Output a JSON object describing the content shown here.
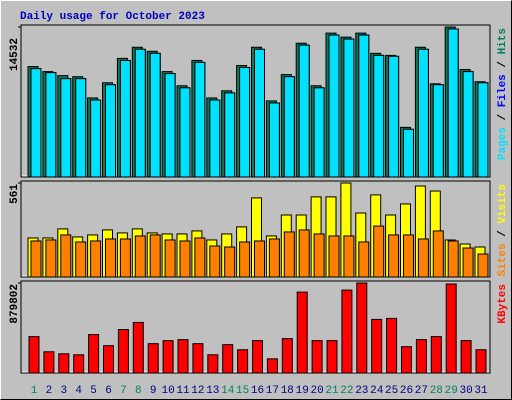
{
  "chart_data": [
    {
      "type": "bar",
      "title": "Daily usage for October 2023",
      "legend_separator": " / ",
      "ylim": [
        0,
        14532
      ],
      "yticks": [
        14532
      ],
      "series": [
        {
          "name": "Hits",
          "color": "#00805c",
          "values": [
            10700,
            10210,
            9820,
            9720,
            7660,
            9130,
            11490,
            12570,
            12180,
            10210,
            8840,
            11290,
            7660,
            8350,
            10800,
            12570,
            7370,
            9920,
            12960,
            8840,
            13940,
            13550,
            13940,
            11980,
            11780,
            4810,
            12570,
            9030,
            14532,
            10410,
            9230
          ]
        },
        {
          "name": "Files",
          "color": "#0000ff",
          "values": [
            10500,
            10110,
            9530,
            9530,
            7460,
            8940,
            11290,
            12370,
            11980,
            10020,
            8640,
            11100,
            7460,
            8150,
            10610,
            12370,
            7170,
            9720,
            12770,
            8640,
            13750,
            13360,
            13750,
            11780,
            11690,
            4620,
            12370,
            8940,
            14340,
            10210,
            9130
          ]
        },
        {
          "name": "Pages",
          "color": "#00e0ff",
          "values": [
            10500,
            10110,
            9530,
            9530,
            7460,
            8940,
            11290,
            12370,
            11980,
            10020,
            8640,
            11100,
            7460,
            8150,
            10610,
            12370,
            7170,
            9720,
            12770,
            8640,
            13750,
            13360,
            13750,
            11780,
            11690,
            4620,
            12370,
            8940,
            14340,
            10210,
            9130
          ]
        }
      ]
    },
    {
      "type": "bar",
      "legend_separator": " / ",
      "ylim": [
        0,
        561
      ],
      "yticks": [
        561
      ],
      "series": [
        {
          "name": "Sites",
          "color": "#ff8000",
          "values": [
            215,
            221,
            251,
            209,
            215,
            227,
            227,
            245,
            251,
            221,
            215,
            233,
            185,
            179,
            209,
            215,
            227,
            269,
            281,
            257,
            245,
            245,
            209,
            304,
            251,
            251,
            227,
            275,
            215,
            173,
            137
          ]
        },
        {
          "name": "Visits",
          "color": "#ffff00",
          "values": [
            233,
            233,
            287,
            239,
            251,
            281,
            263,
            287,
            263,
            257,
            257,
            275,
            221,
            257,
            299,
            472,
            245,
            370,
            370,
            478,
            478,
            561,
            382,
            490,
            370,
            436,
            543,
            513,
            221,
            197,
            179
          ]
        }
      ]
    },
    {
      "type": "bar",
      "ylim": [
        0,
        879802
      ],
      "yticks": [
        879802
      ],
      "categories": [
        "1",
        "2",
        "3",
        "4",
        "5",
        "6",
        "7",
        "8",
        "9",
        "10",
        "11",
        "12",
        "13",
        "14",
        "15",
        "16",
        "17",
        "18",
        "19",
        "20",
        "21",
        "22",
        "23",
        "24",
        "25",
        "26",
        "27",
        "28",
        "29",
        "30",
        "31"
      ],
      "category_colors": [
        "#00805c",
        "#000080",
        "#000080",
        "#000080",
        "#000080",
        "#000080",
        "#00805c",
        "#00805c",
        "#000080",
        "#000080",
        "#000080",
        "#000080",
        "#000080",
        "#00805c",
        "#00805c",
        "#000080",
        "#000080",
        "#000080",
        "#000080",
        "#000080",
        "#00805c",
        "#00805c",
        "#000080",
        "#000080",
        "#000080",
        "#000080",
        "#000080",
        "#00805c",
        "#00805c",
        "#000080",
        "#000080"
      ],
      "series": [
        {
          "name": "KBytes",
          "color": "#ff0000",
          "values": [
            355900,
            207600,
            187800,
            177900,
            375600,
            266900,
            425100,
            494300,
            286700,
            316300,
            326200,
            286700,
            177900,
            276800,
            227400,
            316300,
            138400,
            336100,
            790800,
            316300,
            316300,
            810600,
            879802,
            523900,
            533800,
            257000,
            326200,
            355900,
            869900,
            316300,
            227400
          ]
        }
      ]
    }
  ]
}
